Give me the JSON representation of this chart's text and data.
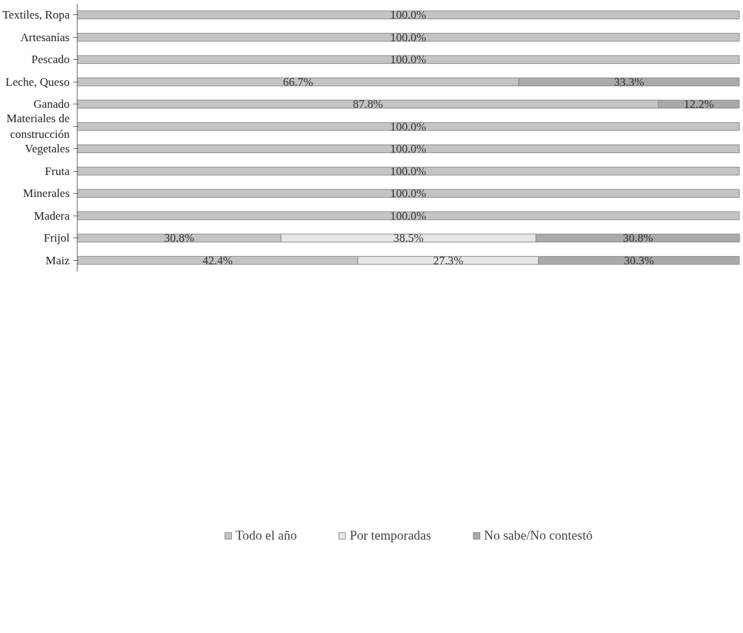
{
  "chart_data": {
    "type": "bar",
    "orientation": "horizontal",
    "stacked": true,
    "categories": [
      "Textiles, Ropa",
      "Artesanías",
      "Pescado",
      "Leche, Queso",
      "Ganado",
      "Materiales de construcción",
      "Vegetales",
      "Fruta",
      "Minerales",
      "Madera",
      "Frijol",
      "Maiz"
    ],
    "series": [
      {
        "name": "Todo el año",
        "color": "#c4c4c4",
        "values": [
          100.0,
          100.0,
          100.0,
          66.7,
          87.8,
          100.0,
          100.0,
          100.0,
          100.0,
          100.0,
          30.8,
          42.4
        ],
        "value_labels": [
          "100.0%",
          "100.0%",
          "100.0%",
          "66.7%",
          "87.8%",
          "100.0%",
          "100.0%",
          "100.0%",
          "100.0%",
          "100.0%",
          "30.8%",
          "42.4%"
        ]
      },
      {
        "name": "Por temporadas",
        "color": "#e6e6e6",
        "values": [
          null,
          null,
          null,
          null,
          null,
          null,
          null,
          null,
          null,
          null,
          38.5,
          27.3
        ],
        "value_labels": [
          null,
          null,
          null,
          null,
          null,
          null,
          null,
          null,
          null,
          null,
          "38.5%",
          "27.3%"
        ]
      },
      {
        "name": "No sabe/No contestó",
        "color": "#a9a9a9",
        "values": [
          null,
          null,
          null,
          33.3,
          12.2,
          null,
          null,
          null,
          null,
          null,
          30.8,
          30.3
        ],
        "value_labels": [
          null,
          null,
          null,
          "33.3%",
          "12.2%",
          null,
          null,
          null,
          null,
          null,
          "30.8%",
          "30.3%"
        ]
      }
    ],
    "legend": "bottom",
    "grid": false,
    "tick_labels": "y"
  }
}
